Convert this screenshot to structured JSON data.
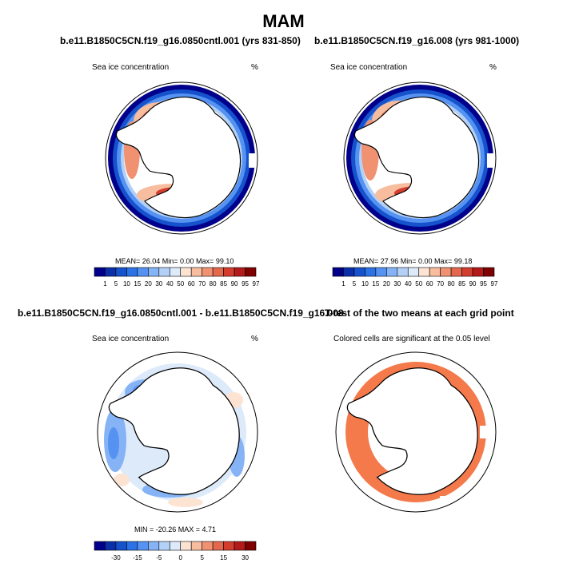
{
  "title": "MAM",
  "colors": {
    "ice_scale": [
      "#00008b",
      "#0a2fa8",
      "#1552cc",
      "#2b72e6",
      "#5592f2",
      "#85b3f5",
      "#b3d1f7",
      "#ddeafa",
      "#fde3d2",
      "#f8bc9e",
      "#f09272",
      "#e4684d",
      "#d23d2d",
      "#b31b1b",
      "#7f0000"
    ],
    "diff_scale": [
      "#00008b",
      "#0a2fa8",
      "#1552cc",
      "#2b72e6",
      "#5592f2",
      "#85b3f5",
      "#b3d1f7",
      "#ddeafa",
      "#fde3d2",
      "#f8bc9e",
      "#f09272",
      "#e4684d",
      "#d23d2d",
      "#b31b1b",
      "#7f0000"
    ],
    "significance": "#f4794b",
    "land": "#ffffff"
  },
  "panels": [
    {
      "title": "b.e11.B1850C5CN.f19_g16.0850cntl.001 (yrs 831-850)",
      "left_label": "Sea ice concentration",
      "right_label": "%",
      "stats": "MEAN=  26.04  Min=   0.00  Max=  99.10",
      "colorbar_labels": [
        "1",
        "5",
        "10",
        "15",
        "20",
        "30",
        "40",
        "50",
        "60",
        "70",
        "80",
        "85",
        "90",
        "95",
        "97"
      ]
    },
    {
      "title": "b.e11.B1850C5CN.f19_g16.008 (yrs 981-1000)",
      "left_label": "Sea ice concentration",
      "right_label": "%",
      "stats": "MEAN=  27.96  Min=   0.00  Max=  99.18",
      "colorbar_labels": [
        "1",
        "5",
        "10",
        "15",
        "20",
        "30",
        "40",
        "50",
        "60",
        "70",
        "80",
        "85",
        "90",
        "95",
        "97"
      ]
    },
    {
      "title": "b.e11.B1850C5CN.f19_g16.0850cntl.001 - b.e11.B1850C5CN.f19_g16.008",
      "left_label": "Sea ice concentration",
      "right_label": "%",
      "stats": "MIN = -20.26 MAX =   4.71",
      "colorbar_labels": [
        "-30",
        "-15",
        "-5",
        "0",
        "5",
        "15",
        "30"
      ]
    },
    {
      "title": "T-test of the two means at each grid point",
      "center_label": "Colored cells are significant at the 0.05 level"
    }
  ]
}
